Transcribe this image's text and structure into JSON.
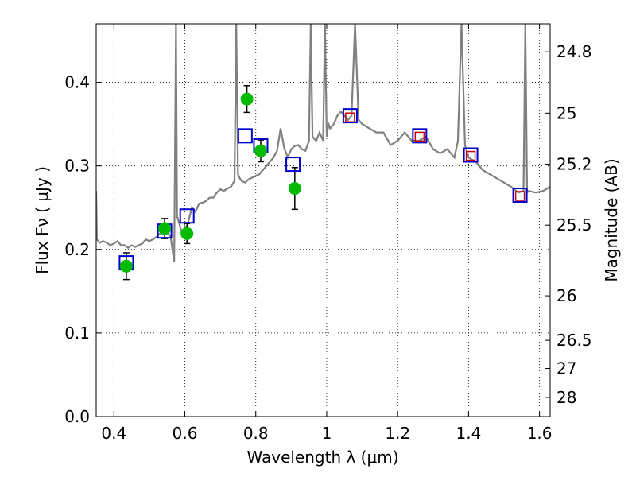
{
  "chart_data": {
    "type": "scatter",
    "xlabel": "Wavelength  λ (μm)",
    "ylabel": "Flux  Fν  ( μJy )",
    "y2label": "Magnitude (AB)",
    "xlim": [
      0.35,
      1.63
    ],
    "ylim": [
      0.0,
      0.47
    ],
    "grid": true,
    "x_ticks": [
      {
        "value": 0.4,
        "label": "0.4"
      },
      {
        "value": 0.6,
        "label": "0.6"
      },
      {
        "value": 0.8,
        "label": "0.8"
      },
      {
        "value": 1.0,
        "label": "1"
      },
      {
        "value": 1.2,
        "label": "1.2"
      },
      {
        "value": 1.4,
        "label": "1.4"
      },
      {
        "value": 1.6,
        "label": "1.6"
      }
    ],
    "y_ticks": [
      {
        "value": 0.0,
        "label": "0.0"
      },
      {
        "value": 0.1,
        "label": "0.1"
      },
      {
        "value": 0.2,
        "label": "0.2"
      },
      {
        "value": 0.3,
        "label": "0.3"
      },
      {
        "value": 0.4,
        "label": "0.4"
      }
    ],
    "y2_ticks": [
      {
        "value": 24.8,
        "label": "24.8"
      },
      {
        "value": 25.0,
        "label": "25"
      },
      {
        "value": 25.2,
        "label": "25.2"
      },
      {
        "value": 25.5,
        "label": "25.5"
      },
      {
        "value": 26.0,
        "label": "26"
      },
      {
        "value": 26.5,
        "label": "26.5"
      },
      {
        "value": 27.0,
        "label": "27"
      },
      {
        "value": 28.0,
        "label": "28"
      }
    ],
    "observed": {
      "color": "#00bb00",
      "points": [
        {
          "x": 0.435,
          "y": 0.18,
          "err": 0.016
        },
        {
          "x": 0.543,
          "y": 0.225,
          "err": 0.012
        },
        {
          "x": 0.606,
          "y": 0.219,
          "err": 0.012
        },
        {
          "x": 0.775,
          "y": 0.38,
          "err": 0.016
        },
        {
          "x": 0.814,
          "y": 0.318,
          "err": 0.013
        },
        {
          "x": 0.91,
          "y": 0.273,
          "err": 0.025
        }
      ]
    },
    "model_photometry": {
      "color": "#0000cc",
      "points": [
        {
          "x": 0.435,
          "y": 0.184
        },
        {
          "x": 0.543,
          "y": 0.222
        },
        {
          "x": 0.606,
          "y": 0.24
        },
        {
          "x": 0.77,
          "y": 0.336
        },
        {
          "x": 0.814,
          "y": 0.324
        },
        {
          "x": 0.905,
          "y": 0.302
        },
        {
          "x": 1.066,
          "y": 0.36
        },
        {
          "x": 1.262,
          "y": 0.336
        },
        {
          "x": 1.406,
          "y": 0.313
        },
        {
          "x": 1.545,
          "y": 0.265
        }
      ]
    },
    "model_photometry_inner": {
      "color": "#cc0000",
      "points": [
        {
          "x": 1.066,
          "y": 0.358
        },
        {
          "x": 1.262,
          "y": 0.335
        },
        {
          "x": 1.406,
          "y": 0.312
        },
        {
          "x": 1.545,
          "y": 0.264
        }
      ]
    },
    "spectrum": {
      "color": "#808080",
      "x": [
        0.35,
        0.352,
        0.356,
        0.36,
        0.37,
        0.38,
        0.39,
        0.4,
        0.41,
        0.42,
        0.43,
        0.44,
        0.45,
        0.46,
        0.47,
        0.48,
        0.49,
        0.5,
        0.51,
        0.52,
        0.53,
        0.54,
        0.55,
        0.56,
        0.565,
        0.57,
        0.575,
        0.578,
        0.585,
        0.59,
        0.595,
        0.6,
        0.605,
        0.61,
        0.62,
        0.63,
        0.64,
        0.65,
        0.66,
        0.67,
        0.68,
        0.69,
        0.7,
        0.71,
        0.72,
        0.73,
        0.74,
        0.745,
        0.75,
        0.755,
        0.76,
        0.77,
        0.78,
        0.79,
        0.8,
        0.81,
        0.82,
        0.83,
        0.84,
        0.85,
        0.86,
        0.87,
        0.88,
        0.89,
        0.9,
        0.91,
        0.92,
        0.93,
        0.94,
        0.95,
        0.955,
        0.96,
        0.97,
        0.98,
        0.99,
        0.995,
        1.0,
        1.005,
        1.01,
        1.02,
        1.03,
        1.04,
        1.05,
        1.06,
        1.07,
        1.08,
        1.09,
        1.1,
        1.12,
        1.14,
        1.16,
        1.18,
        1.2,
        1.22,
        1.24,
        1.26,
        1.28,
        1.3,
        1.32,
        1.34,
        1.36,
        1.37,
        1.38,
        1.39,
        1.4,
        1.42,
        1.44,
        1.46,
        1.48,
        1.5,
        1.52,
        1.54,
        1.555,
        1.56,
        1.565,
        1.57,
        1.59,
        1.61,
        1.63
      ],
      "y": [
        0.27,
        0.212,
        0.21,
        0.208,
        0.21,
        0.208,
        0.205,
        0.207,
        0.21,
        0.205,
        0.205,
        0.202,
        0.205,
        0.203,
        0.205,
        0.207,
        0.212,
        0.21,
        0.212,
        0.215,
        0.219,
        0.225,
        0.222,
        0.215,
        0.2,
        0.185,
        0.47,
        0.24,
        0.23,
        0.222,
        0.22,
        0.228,
        0.225,
        0.234,
        0.25,
        0.245,
        0.255,
        0.256,
        0.258,
        0.262,
        0.262,
        0.268,
        0.272,
        0.27,
        0.273,
        0.275,
        0.282,
        0.47,
        0.29,
        0.285,
        0.282,
        0.28,
        0.284,
        0.286,
        0.288,
        0.29,
        0.295,
        0.3,
        0.305,
        0.31,
        0.318,
        0.345,
        0.322,
        0.31,
        0.32,
        0.324,
        0.325,
        0.32,
        0.318,
        0.33,
        0.47,
        0.335,
        0.33,
        0.34,
        0.33,
        0.47,
        0.335,
        0.35,
        0.345,
        0.35,
        0.36,
        0.365,
        0.36,
        0.355,
        0.36,
        0.47,
        0.355,
        0.35,
        0.345,
        0.34,
        0.34,
        0.325,
        0.33,
        0.34,
        0.33,
        0.33,
        0.335,
        0.32,
        0.315,
        0.32,
        0.31,
        0.33,
        0.47,
        0.325,
        0.31,
        0.305,
        0.295,
        0.29,
        0.285,
        0.28,
        0.275,
        0.268,
        0.27,
        0.47,
        0.268,
        0.27,
        0.268,
        0.27,
        0.275
      ]
    }
  }
}
